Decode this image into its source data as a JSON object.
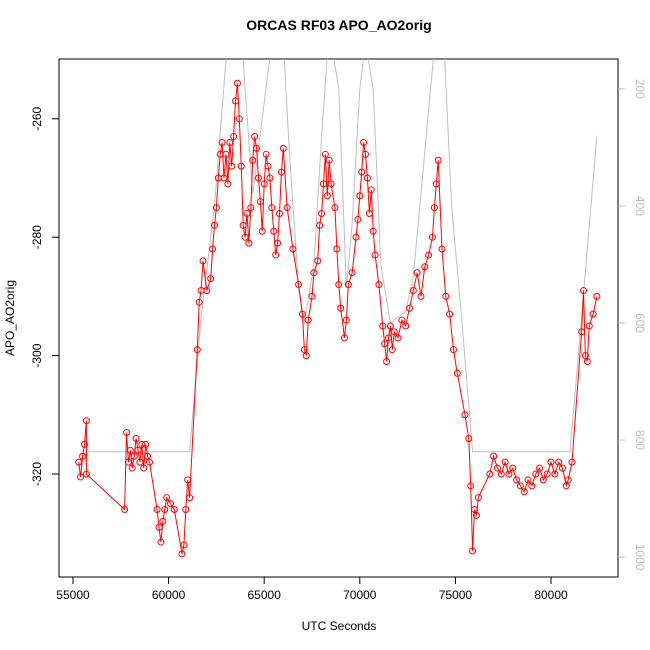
{
  "chart_data": {
    "type": "line",
    "title": "ORCAS RF03 APO_AO2orig",
    "x_label": "UTC Seconds",
    "y_label": "APO_AO2orig",
    "xlim": [
      54268,
      83504
    ],
    "xticks": [
      55000,
      60000,
      65000,
      70000,
      75000,
      80000
    ],
    "ylim": [
      -337.4,
      -249.9
    ],
    "yticks": [
      -320,
      -300,
      -280,
      -260
    ],
    "y2lim": [
      1034,
      149
    ],
    "y2ticks": [
      200,
      400,
      600,
      800,
      1000
    ],
    "series": [
      {
        "color": "#ff0000",
        "marker": "circle",
        "x": [
          55300,
          55400,
          55500,
          55600,
          55700,
          55700,
          57700,
          57800,
          57900,
          58000,
          58100,
          58200,
          58300,
          58400,
          58500,
          58600,
          58700,
          58800,
          58900,
          59000,
          59400,
          59500,
          59600,
          59700,
          59800,
          59900,
          60100,
          60300,
          60700,
          60800,
          60900,
          61000,
          61100,
          61500,
          61600,
          61700,
          61800,
          62000,
          62200,
          62300,
          62400,
          62500,
          62600,
          62700,
          62800,
          62900,
          63000,
          63100,
          63200,
          63300,
          63400,
          63500,
          63600,
          63700,
          63800,
          63900,
          64000,
          64100,
          64200,
          64300,
          64400,
          64500,
          64600,
          64700,
          64800,
          64900,
          65000,
          65100,
          65200,
          65300,
          65400,
          65500,
          65600,
          65700,
          65800,
          65900,
          66000,
          66200,
          66500,
          66800,
          67000,
          67100,
          67200,
          67300,
          67500,
          67600,
          67800,
          67900,
          68000,
          68100,
          68200,
          68300,
          68400,
          68500,
          68700,
          68800,
          68900,
          69000,
          69200,
          69300,
          69400,
          69600,
          69800,
          69900,
          70000,
          70100,
          70200,
          70300,
          70400,
          70500,
          70600,
          70700,
          70800,
          71000,
          71200,
          71300,
          71400,
          71500,
          71600,
          71700,
          71800,
          72000,
          72200,
          72400,
          72600,
          72800,
          73000,
          73200,
          73400,
          73600,
          73800,
          73900,
          74000,
          74100,
          74300,
          74500,
          74700,
          74900,
          75100,
          75500,
          75700,
          75800,
          75900,
          76000,
          76100,
          76200,
          76800,
          77000,
          77200,
          77400,
          77600,
          77800,
          78000,
          78200,
          78400,
          78600,
          78800,
          79000,
          79200,
          79400,
          79600,
          79800,
          80000,
          80200,
          80400,
          80600,
          80800,
          80900,
          81100,
          81600,
          81700,
          81800,
          81900,
          82000,
          82200,
          82400
        ],
        "values": [
          -318,
          -320.5,
          -317,
          -315,
          -311,
          -320,
          -326,
          -313,
          -318,
          -316,
          -319,
          -317,
          -314,
          -316,
          -318,
          -315,
          -319,
          -315,
          -317,
          -318,
          -326,
          -329,
          -331.5,
          -328,
          -326,
          -324,
          -325,
          -326,
          -333.5,
          -332,
          -326,
          -321,
          -324,
          -299,
          -291,
          -289,
          -284,
          -289,
          -287,
          -282,
          -278,
          -275,
          -270,
          -266,
          -264,
          -270,
          -266,
          -271,
          -264,
          -268,
          -263,
          -257,
          -254,
          -260,
          -268,
          -278,
          -280,
          -276,
          -281,
          -275,
          -267,
          -263,
          -265,
          -270,
          -274,
          -279,
          -271,
          -266,
          -268,
          -270,
          -275,
          -279,
          -283,
          -281,
          -276,
          -269,
          -265,
          -275,
          -282,
          -288,
          -293,
          -299,
          -300,
          -294,
          -290,
          -286,
          -284,
          -278,
          -276,
          -271,
          -266,
          -273,
          -267,
          -271,
          -275,
          -282,
          -288,
          -292,
          -297,
          -294,
          -288,
          -286,
          -280,
          -277,
          -273,
          -269,
          -264,
          -266,
          -270,
          -276,
          -272,
          -279,
          -283,
          -288,
          -295,
          -298,
          -301,
          -297,
          -295,
          -299,
          -296,
          -297,
          -294,
          -295,
          -292,
          -289,
          -286,
          -290,
          -285,
          -283,
          -280,
          -275,
          -271,
          -267,
          -282,
          -290,
          -293,
          -299,
          -303,
          -310,
          -314,
          -322,
          -333,
          -326,
          -327,
          -324,
          -320,
          -317,
          -319,
          -320,
          -318,
          -320,
          -319,
          -321,
          -322,
          -323,
          -321,
          -322,
          -320,
          -319,
          -321,
          -320,
          -318,
          -320,
          -318,
          -319,
          -322,
          -321,
          -318,
          -296,
          -289,
          -300,
          -301,
          -295,
          -293,
          -290
        ]
      },
      {
        "color": "#bebebe",
        "axis": "y2",
        "x": [
          55300,
          55700,
          61100,
          61700,
          62400,
          63000,
          63200,
          63800,
          64000,
          64400,
          64900,
          65400,
          66000,
          66300,
          66800,
          67100,
          67600,
          68000,
          68400,
          68900,
          69300,
          69600,
          70000,
          70300,
          70700,
          71100,
          71600,
          72400,
          72800,
          73200,
          73700,
          74000,
          74400,
          74800,
          75300,
          75900,
          81000,
          82400
        ],
        "values": [
          845,
          820,
          820,
          590,
          400,
          150,
          100,
          100,
          200,
          380,
          250,
          120,
          120,
          300,
          540,
          600,
          500,
          280,
          100,
          200,
          540,
          430,
          200,
          120,
          200,
          500,
          600,
          580,
          520,
          380,
          200,
          100,
          120,
          400,
          580,
          820,
          820,
          280
        ]
      }
    ]
  }
}
